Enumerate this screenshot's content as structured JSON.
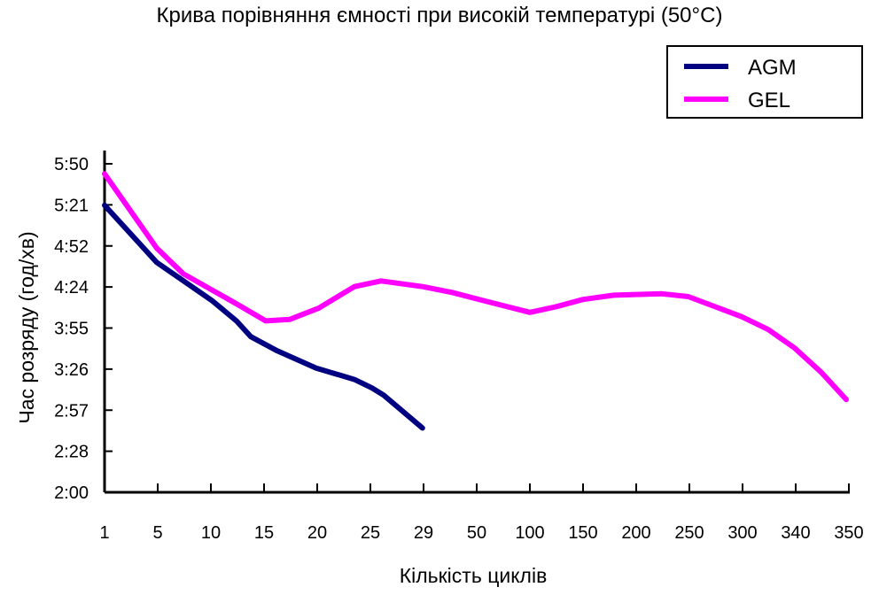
{
  "chart_data": {
    "type": "line",
    "title": "Крива порівняння ємності при високій температурі (50°C)",
    "xlabel": "Кількість циклів",
    "ylabel": "Час розряду (год/хв)",
    "categories": [
      "1",
      "5",
      "10",
      "15",
      "20",
      "25",
      "29",
      "50",
      "100",
      "150",
      "200",
      "250",
      "300",
      "340",
      "350"
    ],
    "y_ticks": [
      "2:00",
      "2:28",
      "2:57",
      "3:26",
      "3:55",
      "4:24",
      "4:52",
      "5:21",
      "5:50"
    ],
    "ylim_minutes": [
      120,
      350
    ],
    "legend_position": "top-right",
    "grid": false,
    "series": [
      {
        "name": "AGM",
        "color": "#000080",
        "points_cycle_index_minutes": [
          [
            0,
            321
          ],
          [
            0.98,
            281
          ],
          [
            2.03,
            254
          ],
          [
            2.48,
            240
          ],
          [
            2.75,
            229
          ],
          [
            3.25,
            219
          ],
          [
            3.98,
            207
          ],
          [
            4.7,
            199
          ],
          [
            5.03,
            193
          ],
          [
            5.25,
            188
          ],
          [
            5.98,
            165
          ]
        ]
      },
      {
        "name": "GEL",
        "color": "#FF00FF",
        "points_cycle_index_minutes": [
          [
            0,
            343
          ],
          [
            0.98,
            291
          ],
          [
            1.48,
            273
          ],
          [
            2.48,
            252
          ],
          [
            3.03,
            240
          ],
          [
            3.48,
            241
          ],
          [
            4.03,
            249
          ],
          [
            4.7,
            264
          ],
          [
            5.2,
            268
          ],
          [
            5.98,
            264
          ],
          [
            6.53,
            260
          ],
          [
            7.15,
            254
          ],
          [
            8.0,
            246
          ],
          [
            8.5,
            250
          ],
          [
            9.0,
            255
          ],
          [
            9.58,
            258
          ],
          [
            10.48,
            259
          ],
          [
            10.98,
            257
          ],
          [
            11.98,
            243
          ],
          [
            12.48,
            234
          ],
          [
            12.98,
            221
          ],
          [
            13.48,
            204
          ],
          [
            13.95,
            185
          ]
        ]
      }
    ]
  }
}
